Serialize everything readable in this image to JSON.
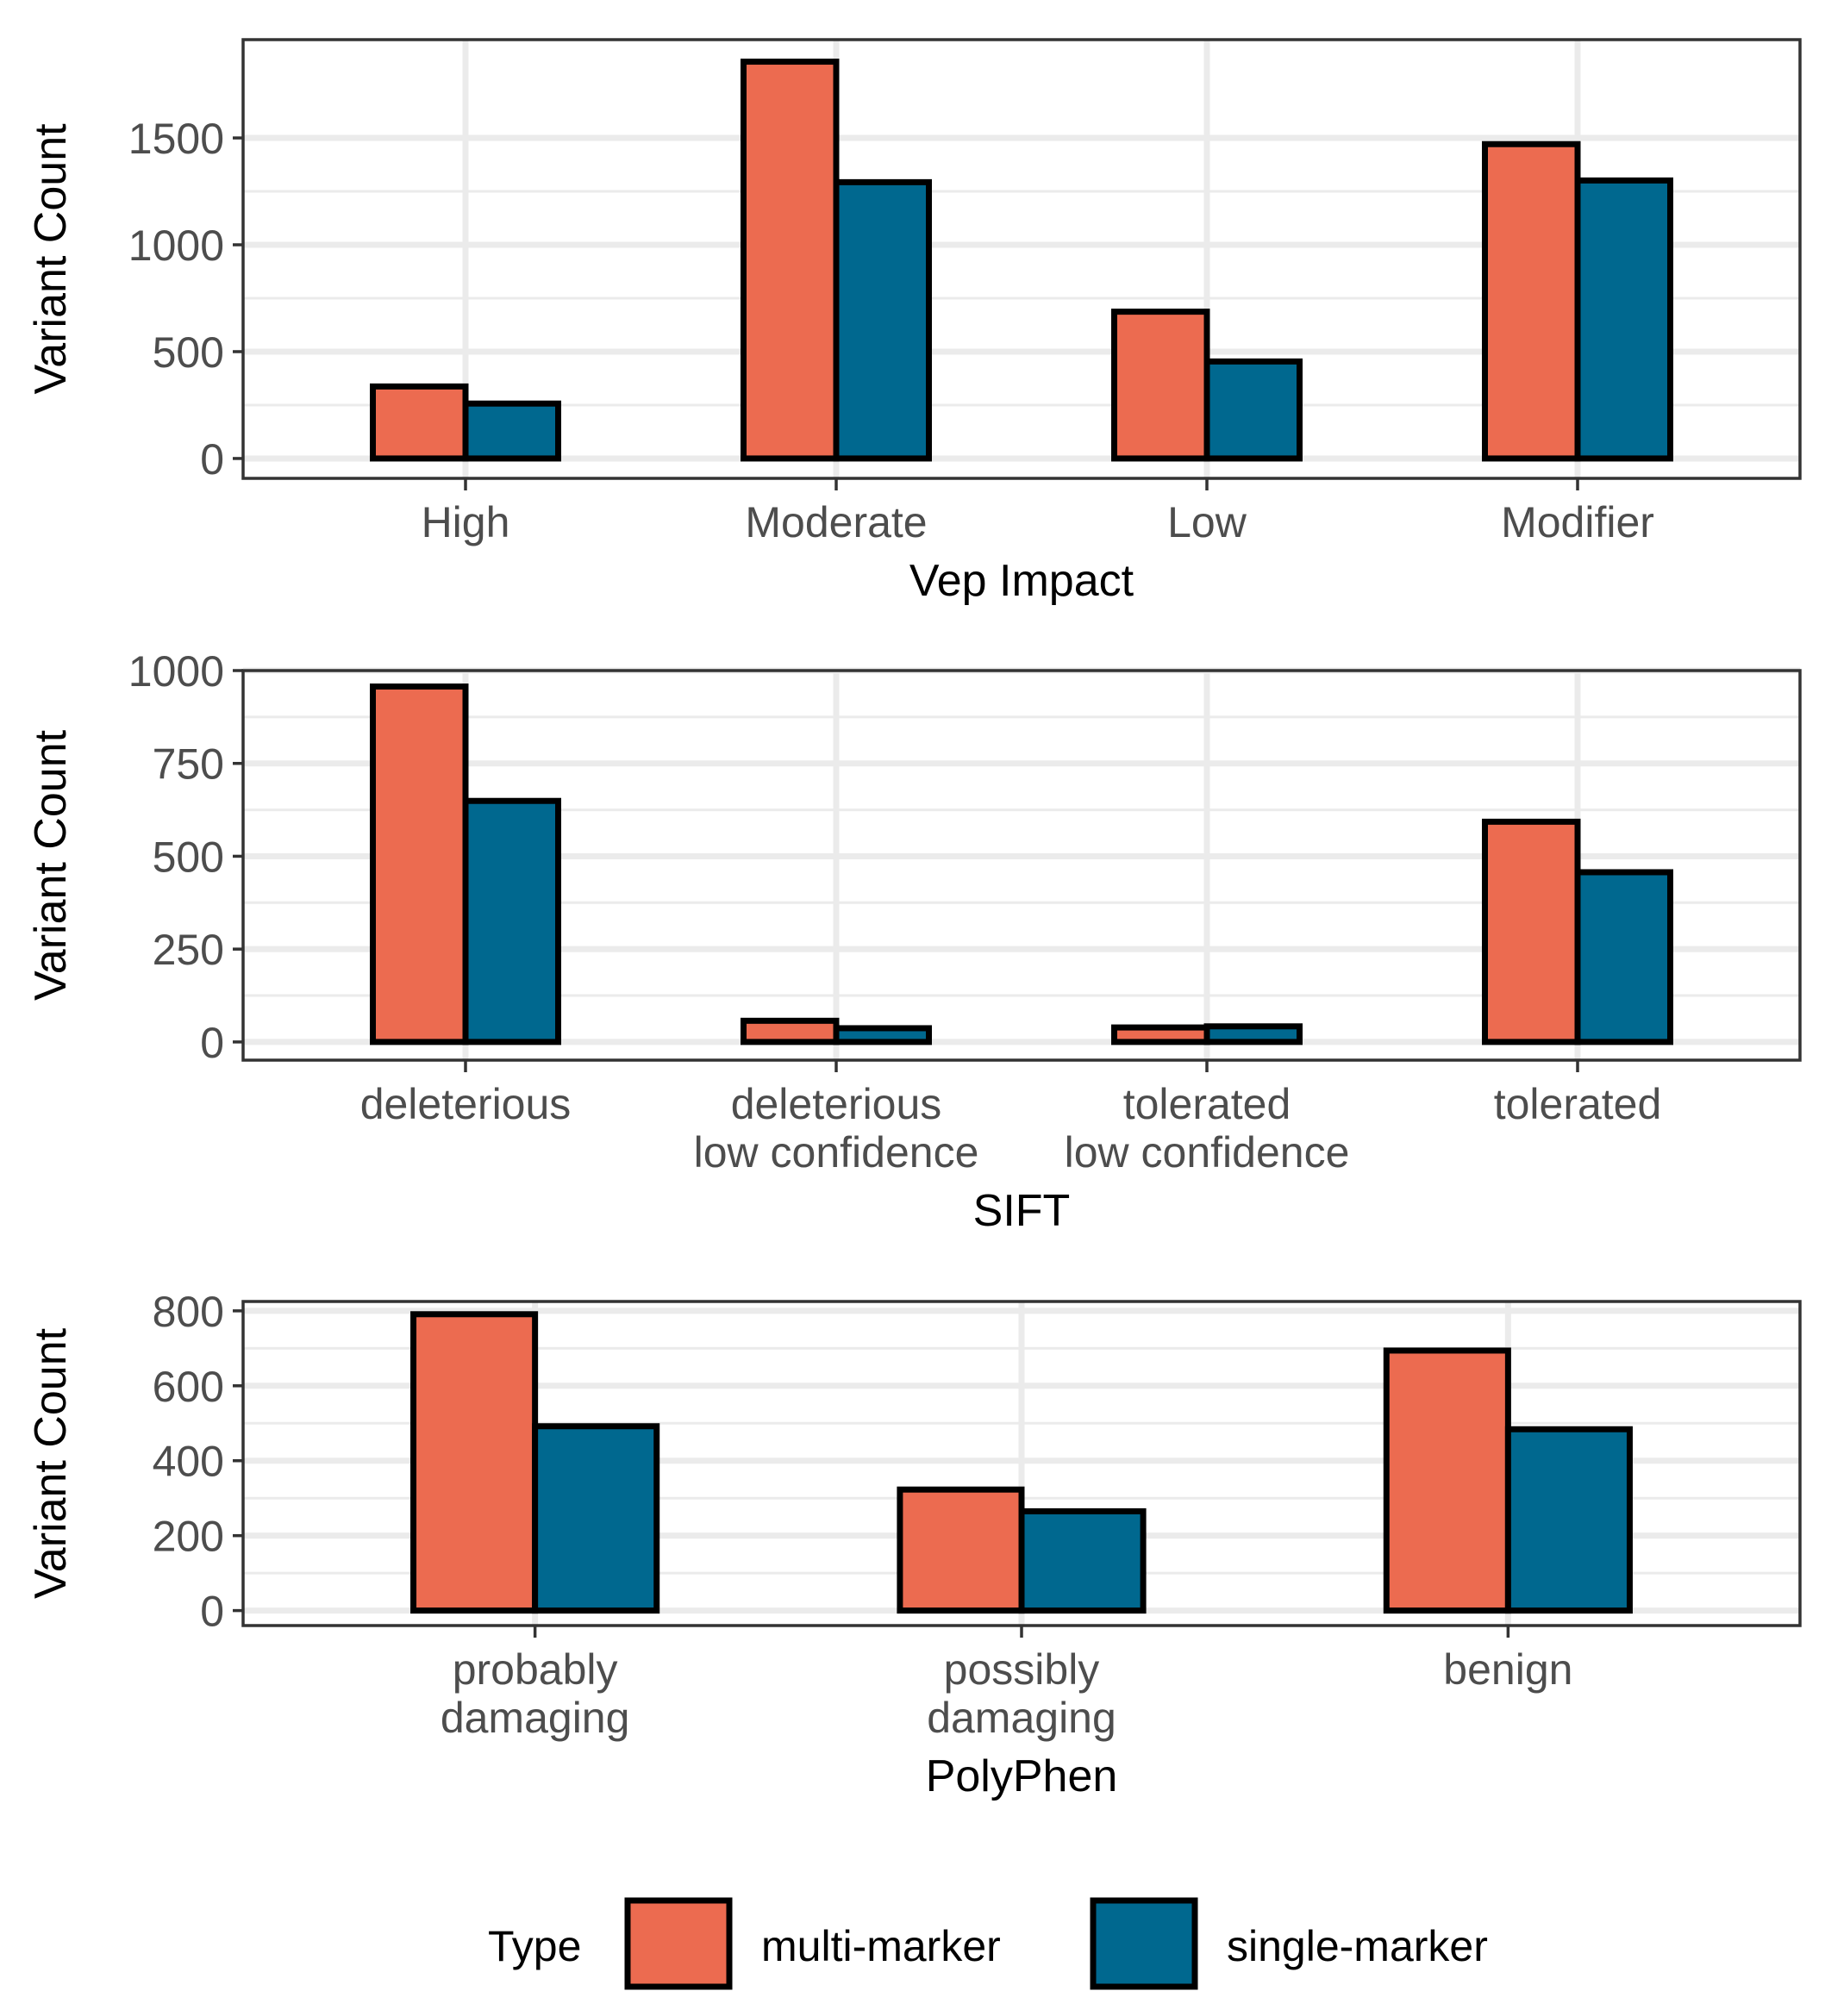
{
  "chart_data": [
    {
      "type": "bar",
      "xlabel": "Vep Impact",
      "ylabel": "Variant Count",
      "categories": [
        [
          "High"
        ],
        [
          "Moderate"
        ],
        [
          "Low"
        ],
        [
          "Modifier"
        ]
      ],
      "yticks": [
        0,
        500,
        1000,
        1500
      ],
      "ylim": [
        -93,
        1960
      ],
      "grid": true,
      "series": [
        {
          "name": "multi-marker",
          "values": [
            337,
            1857,
            687,
            1471
          ]
        },
        {
          "name": "single-marker",
          "values": [
            257,
            1293,
            454,
            1301
          ]
        }
      ]
    },
    {
      "type": "bar",
      "xlabel": "SIFT",
      "ylabel": "Variant Count",
      "categories": [
        [
          "deleterious"
        ],
        [
          "deleterious",
          "low confidence"
        ],
        [
          "tolerated",
          "low confidence"
        ],
        [
          "tolerated"
        ]
      ],
      "yticks": [
        0,
        250,
        500,
        750,
        1000
      ],
      "ylim": [
        -49,
        1000
      ],
      "grid": true,
      "series": [
        {
          "name": "multi-marker",
          "values": [
            957,
            57,
            39,
            593
          ]
        },
        {
          "name": "single-marker",
          "values": [
            649,
            37,
            42,
            457
          ]
        }
      ]
    },
    {
      "type": "bar",
      "xlabel": "PolyPhen",
      "ylabel": "Variant Count",
      "categories": [
        [
          "probably",
          "damaging"
        ],
        [
          "possibly",
          "damaging"
        ],
        [
          "benign"
        ]
      ],
      "yticks": [
        0,
        200,
        400,
        600,
        800
      ],
      "ylim": [
        -40,
        825
      ],
      "grid": true,
      "series": [
        {
          "name": "multi-marker",
          "values": [
            791,
            323,
            694
          ]
        },
        {
          "name": "single-marker",
          "values": [
            492,
            265,
            484
          ]
        }
      ]
    }
  ],
  "legend": {
    "title": "Type",
    "placement": "bottom",
    "items": [
      {
        "label": "multi-marker",
        "color": "#EC6B50"
      },
      {
        "label": "single-marker",
        "color": "#00688F"
      }
    ]
  }
}
